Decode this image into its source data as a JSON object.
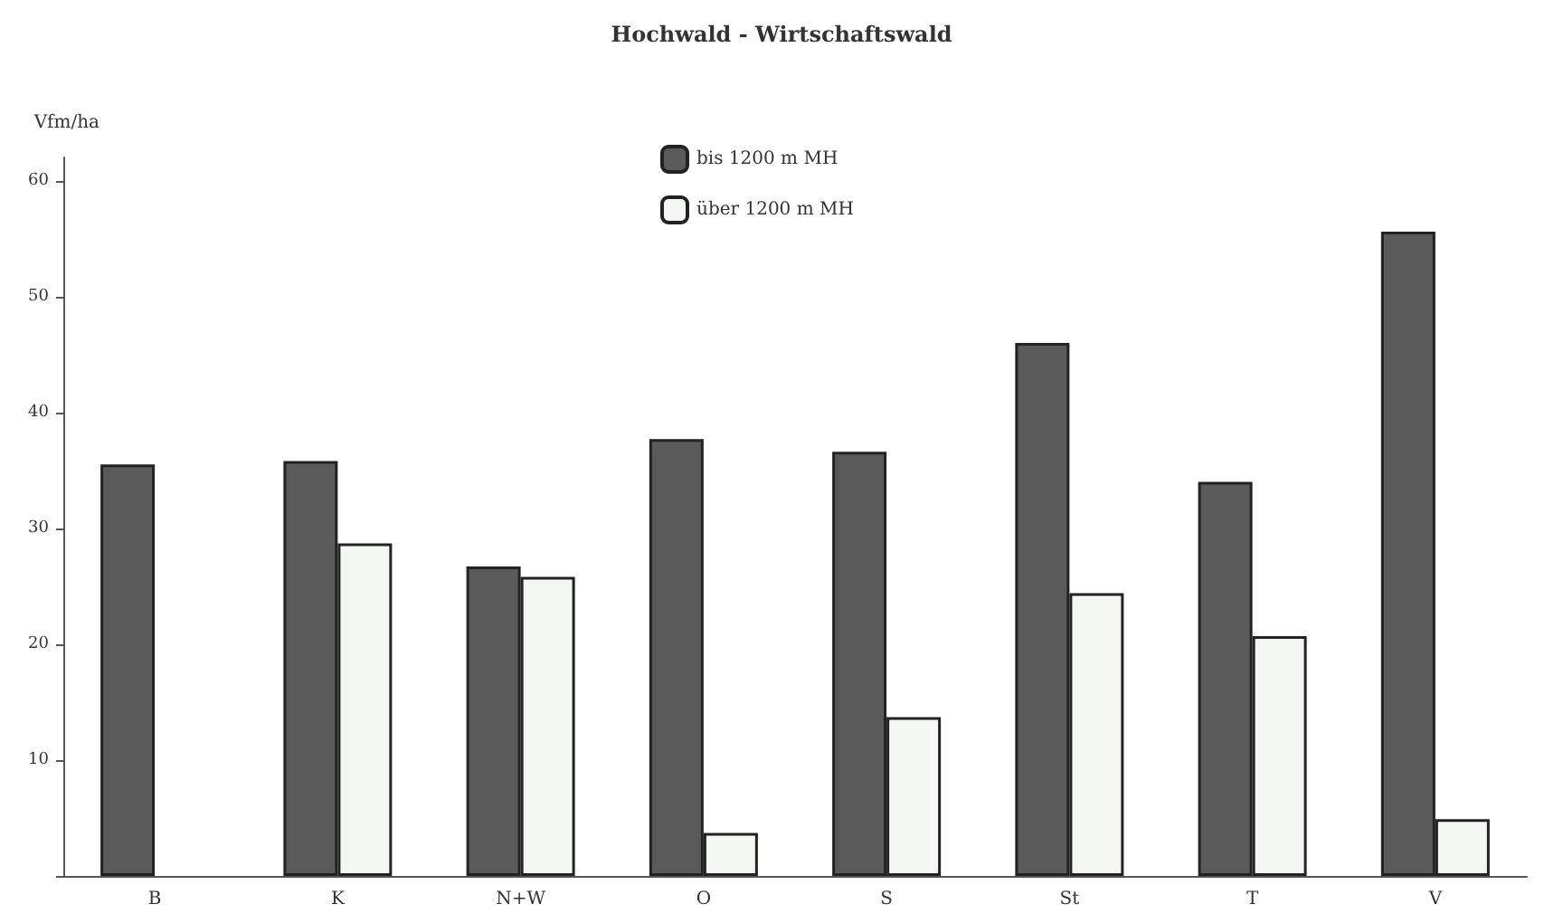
{
  "chart_data": {
    "type": "bar",
    "title": "Hochwald - Wirtschaftswald",
    "ylabel": "Vfm/ha",
    "categories": [
      "B",
      "K",
      "N+W",
      "O",
      "S",
      "St",
      "T",
      "V"
    ],
    "series": [
      {
        "name": "bis 1200 m MH",
        "color": "#5a5a5a",
        "values": [
          35.5,
          35.8,
          26.7,
          37.7,
          36.6,
          46,
          34,
          55.6
        ]
      },
      {
        "name": "über 1200 m MH",
        "color": "#f3f6f3",
        "values": [
          null,
          28.7,
          25.8,
          3.7,
          13.7,
          24.4,
          20.7,
          4.9
        ]
      }
    ],
    "ylim": [
      0,
      62
    ],
    "yticks": [
      {
        "value": 0,
        "label": null
      },
      10,
      20,
      30,
      40,
      50,
      60
    ],
    "grid": false,
    "legend": "top"
  }
}
